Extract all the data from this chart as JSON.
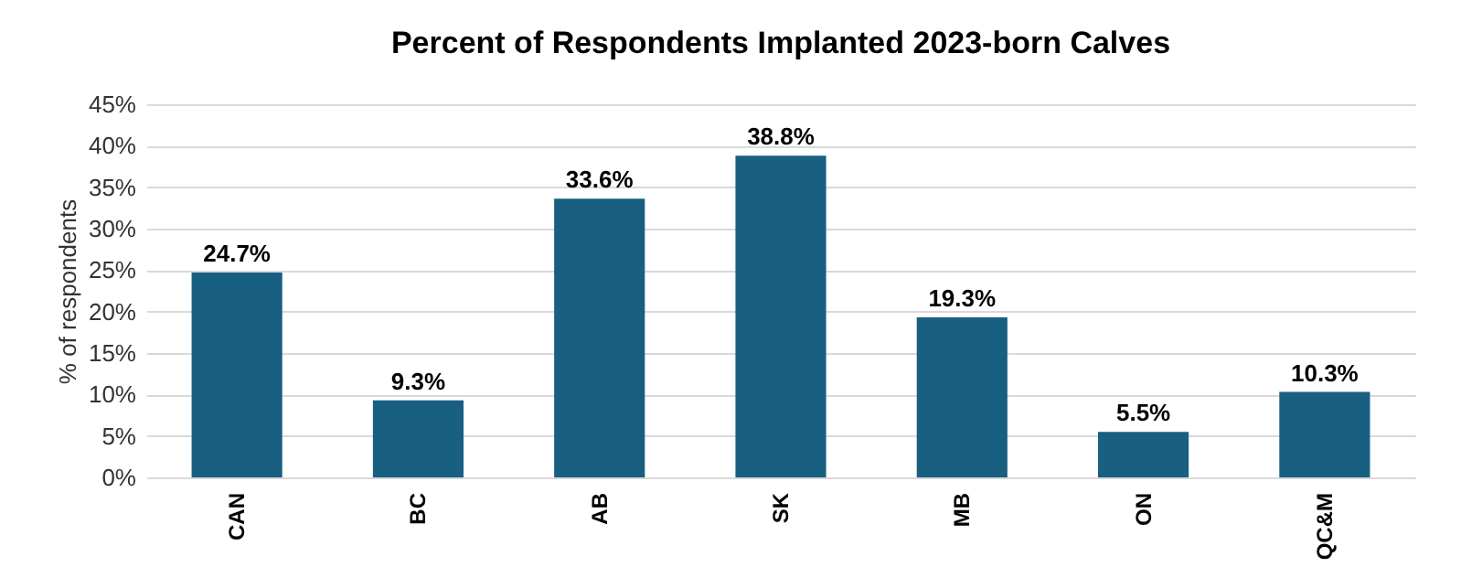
{
  "chart_data": {
    "type": "bar",
    "title": "Percent of Respondents Implanted 2023-born Calves",
    "ylabel": "% of respondents",
    "categories": [
      "CAN",
      "BC",
      "AB",
      "SK",
      "MB",
      "ON",
      "QC&M"
    ],
    "values": [
      24.7,
      9.3,
      33.6,
      38.8,
      19.3,
      5.5,
      10.3
    ],
    "value_labels": [
      "24.7%",
      "9.3%",
      "33.6%",
      "38.8%",
      "19.3%",
      "5.5%",
      "10.3%"
    ],
    "color": "#185f82",
    "ylim": [
      0,
      45
    ],
    "yticks": [
      {
        "value": 0,
        "label": "0%"
      },
      {
        "value": 5,
        "label": "5%"
      },
      {
        "value": 10,
        "label": "10%"
      },
      {
        "value": 15,
        "label": "15%"
      },
      {
        "value": 20,
        "label": "20%"
      },
      {
        "value": 25,
        "label": "25%"
      },
      {
        "value": 30,
        "label": "30%"
      },
      {
        "value": 35,
        "label": "35%"
      },
      {
        "value": 40,
        "label": "40%"
      },
      {
        "value": 45,
        "label": "45%"
      }
    ],
    "grid": "y"
  }
}
